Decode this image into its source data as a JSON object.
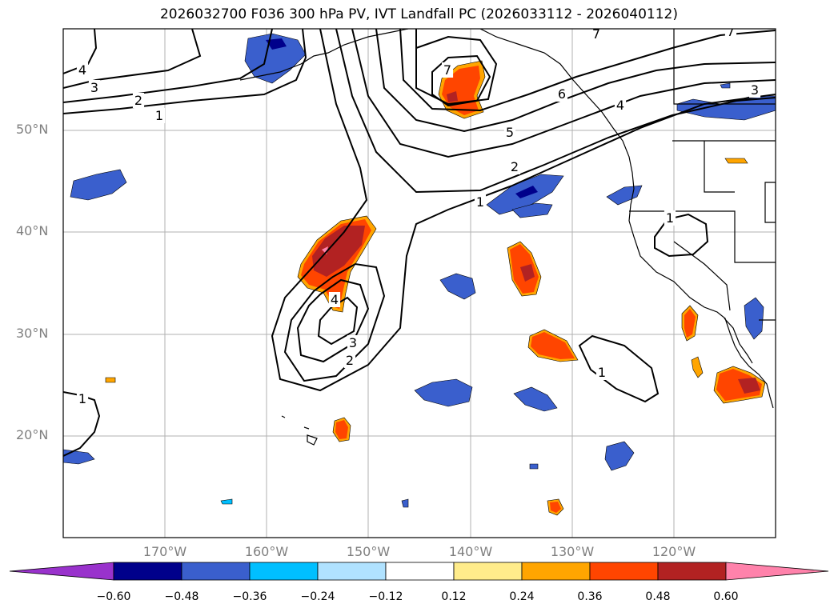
{
  "title": "2026032700 F036 300 hPa PV, IVT Landfall PC (2026033112 - 2026040112)",
  "map": {
    "projection": "PlateCarree",
    "lat_labels": [
      "50°N",
      "40°N",
      "30°N",
      "20°N"
    ],
    "lon_labels": [
      "170°W",
      "160°W",
      "150°W",
      "140°W",
      "130°W",
      "120°W"
    ],
    "contour_labels": [
      "4",
      "3",
      "2",
      "1",
      "7",
      "6",
      "4",
      "5",
      "2",
      "1",
      "3",
      "1",
      "4",
      "3",
      "2",
      "1",
      "1",
      "7",
      "7"
    ]
  },
  "colorbar": {
    "ticks": [
      "−0.60",
      "−0.48",
      "−0.36",
      "−0.24",
      "−0.12",
      "0.12",
      "0.24",
      "0.36",
      "0.48",
      "0.60"
    ],
    "colors": [
      "#9932cc",
      "#00008b",
      "#3a5fcd",
      "#00bfff",
      "#b0e2ff",
      "#ffffff",
      "#ffec8b",
      "#ffa500",
      "#ff4500",
      "#b22222",
      "#ff82ab"
    ]
  }
}
